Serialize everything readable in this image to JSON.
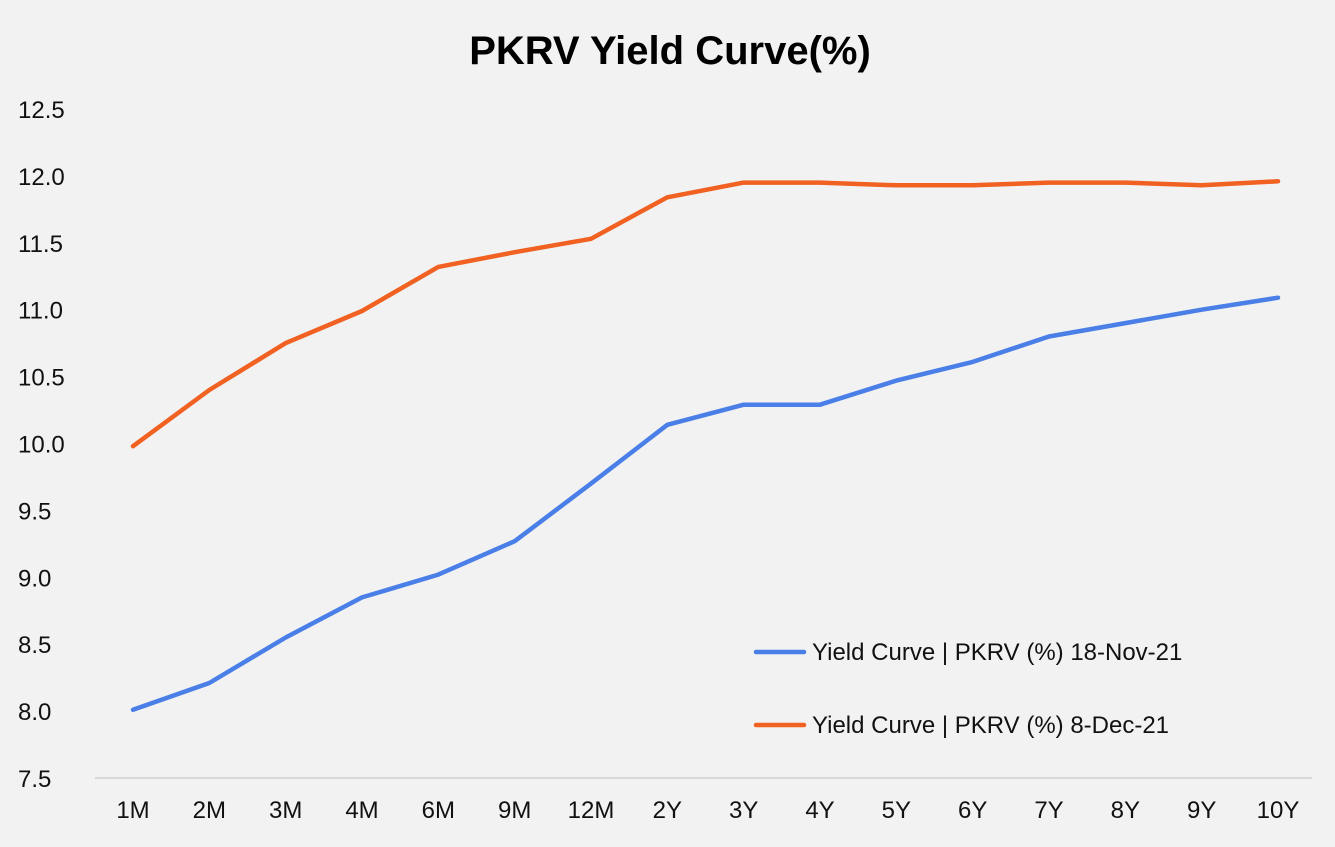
{
  "chart_data": {
    "type": "line",
    "title": "PKRV Yield Curve(%)",
    "xlabel": "",
    "ylabel": "",
    "categories": [
      "1M",
      "2M",
      "3M",
      "4M",
      "6M",
      "9M",
      "12M",
      "2Y",
      "3Y",
      "4Y",
      "5Y",
      "6Y",
      "7Y",
      "8Y",
      "9Y",
      "10Y"
    ],
    "ylim": [
      7.5,
      12.5
    ],
    "yticks": [
      "7.5",
      "8.0",
      "8.5",
      "9.0",
      "9.5",
      "10.0",
      "10.5",
      "11.0",
      "11.5",
      "12.0",
      "12.5"
    ],
    "grid": false,
    "legend_position": "bottom-right",
    "series": [
      {
        "name": "Yield Curve | PKRV (%) 18-Nov-21",
        "color": "#4a7fe8",
        "values": [
          8.01,
          8.21,
          8.55,
          8.85,
          9.02,
          9.27,
          9.7,
          10.14,
          10.29,
          10.29,
          10.47,
          10.61,
          10.8,
          10.9,
          11.0,
          11.09
        ]
      },
      {
        "name": "Yield Curve | PKRV (%) 8-Dec-21",
        "color": "#f06122",
        "values": [
          9.98,
          10.4,
          10.75,
          10.99,
          11.32,
          11.43,
          11.53,
          11.84,
          11.95,
          11.95,
          11.93,
          11.93,
          11.95,
          11.95,
          11.93,
          11.96
        ]
      }
    ],
    "axis_color": "#d0d0d0"
  }
}
